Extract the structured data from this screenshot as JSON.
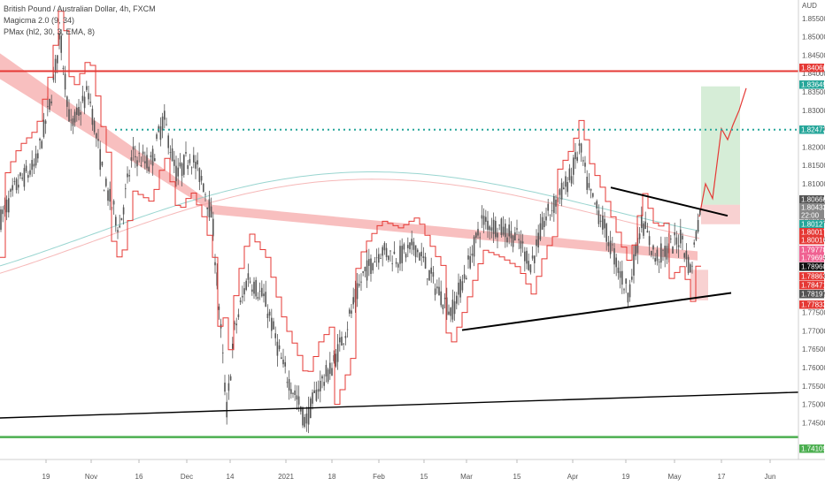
{
  "legend": {
    "symbol": "British Pound / Australian Dollar, 4h, FXCM",
    "indicator1": "Magicma 2.0 (9, 34)",
    "indicator2": "PMax (hl2, 30, 3, EMA, 8)"
  },
  "colors": {
    "candle": "#555555",
    "resistance": "#e53935",
    "support": "#4caf50",
    "target": "#26a69a",
    "pmax": "#e53935",
    "ribbon": "#f28b8b",
    "trendline": "#000000"
  },
  "chart_data": {
    "type": "line",
    "currency": "AUD",
    "ylim": [
      1.735,
      1.86
    ],
    "y_ticks": [
      "1.85500",
      "1.85000",
      "1.84500",
      "1.84000",
      "1.83500",
      "1.83000",
      "1.82500",
      "1.82000",
      "1.81500",
      "1.81000",
      "1.80500",
      "1.80000",
      "1.79500",
      "1.79000",
      "1.78500",
      "1.78000",
      "1.77500",
      "1.77000",
      "1.76500",
      "1.76000",
      "1.75500",
      "1.75000",
      "1.74500"
    ],
    "x_ticks": [
      "19",
      "Nov",
      "16",
      "Dec",
      "14",
      "2021",
      "18",
      "Feb",
      "15",
      "Mar",
      "15",
      "Apr",
      "19",
      "May",
      "17",
      "Jun"
    ],
    "price_labels": [
      {
        "value": "1.84066",
        "color": "#e53935"
      },
      {
        "value": "1.83649",
        "color": "#26a69a"
      },
      {
        "value": "1.82472",
        "color": "#26a69a"
      },
      {
        "value": "1.80666",
        "color": "#555555"
      },
      {
        "value": "1.80433",
        "color": "#888888"
      },
      {
        "value": "22:00",
        "color": "#888888"
      },
      {
        "value": "1.80127",
        "color": "#26a69a"
      },
      {
        "value": "1.80017",
        "color": "#e53935"
      },
      {
        "value": "1.80016",
        "color": "#e53935"
      },
      {
        "value": "1.79778",
        "color": "#f06292"
      },
      {
        "value": "1.79695",
        "color": "#f06292"
      },
      {
        "value": "1.78960",
        "color": "#111111"
      },
      {
        "value": "1.78863",
        "color": "#e53935"
      },
      {
        "value": "1.78471",
        "color": "#e53935"
      },
      {
        "value": "1.78197",
        "color": "#555555"
      },
      {
        "value": "1.77833",
        "color": "#e53935"
      },
      {
        "value": "1.74109",
        "color": "#4caf50"
      }
    ],
    "levels": {
      "resistance": 1.84066,
      "target": 1.82472,
      "support": 1.74109
    }
  }
}
